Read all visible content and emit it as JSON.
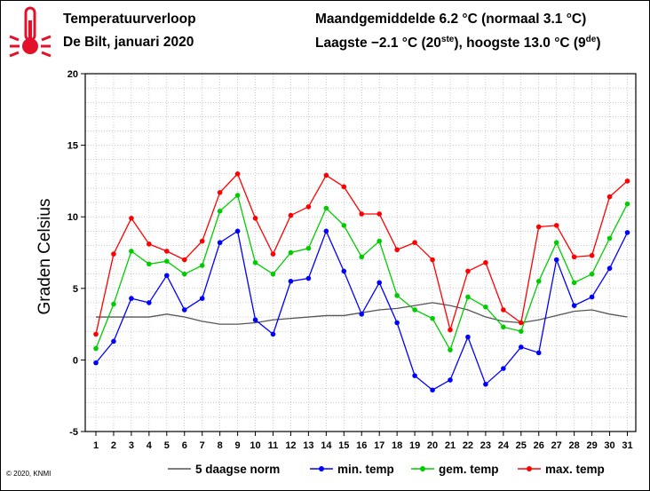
{
  "header": {
    "title": "Temperatuurverloop",
    "subtitle": "De Bilt, januari 2020",
    "monthly_line": "Maandgemiddelde 6.2 °C (normaal 3.1 °C)",
    "extremes_prefix": "Laagste −2.1 °C (20",
    "extremes_sup1": "ste",
    "extremes_mid": "), hoogste 13.0 °C (9",
    "extremes_sup2": "de",
    "extremes_suffix": ")"
  },
  "icon": "thermometer-icon",
  "copyright": "© 2020, KNMI",
  "colors": {
    "norm": "#555555",
    "min": "#0000ff",
    "mean": "#00cc00",
    "max": "#ff0000",
    "grid": "#999999"
  },
  "chart_data": {
    "type": "line",
    "ylabel": "Graden Celsius",
    "xlabel": "",
    "ylim": [
      -5,
      20
    ],
    "yticks": [
      -5,
      0,
      5,
      10,
      15,
      20
    ],
    "grid": true,
    "legend_position": "bottom",
    "x": [
      1,
      2,
      3,
      4,
      5,
      6,
      7,
      8,
      9,
      10,
      11,
      12,
      13,
      14,
      15,
      16,
      17,
      18,
      19,
      20,
      21,
      22,
      23,
      24,
      25,
      26,
      27,
      28,
      29,
      30,
      31
    ],
    "series": [
      {
        "name": "5 daagse norm",
        "key": "norm",
        "markers": false,
        "values": [
          3.0,
          3.0,
          3.0,
          3.0,
          3.2,
          3.0,
          2.7,
          2.5,
          2.5,
          2.6,
          2.8,
          2.9,
          3.0,
          3.1,
          3.1,
          3.3,
          3.5,
          3.6,
          3.8,
          4.0,
          3.8,
          3.5,
          3.0,
          2.7,
          2.6,
          2.8,
          3.1,
          3.4,
          3.5,
          3.2,
          3.0
        ]
      },
      {
        "name": "min. temp",
        "key": "min",
        "markers": true,
        "values": [
          -0.2,
          1.3,
          4.3,
          4.0,
          5.9,
          3.5,
          4.3,
          8.2,
          9.0,
          2.8,
          1.8,
          5.5,
          5.7,
          9.0,
          6.2,
          3.2,
          5.4,
          2.6,
          -1.1,
          -2.1,
          -1.4,
          1.6,
          -1.7,
          -0.6,
          0.9,
          0.5,
          7.0,
          3.8,
          4.4,
          6.4,
          8.9
        ]
      },
      {
        "name": "gem. temp",
        "key": "mean",
        "markers": true,
        "values": [
          0.8,
          3.9,
          7.6,
          6.7,
          6.9,
          6.0,
          6.6,
          10.4,
          11.5,
          6.8,
          6.0,
          7.5,
          7.8,
          10.6,
          9.4,
          7.2,
          8.3,
          4.5,
          3.5,
          2.9,
          0.7,
          4.4,
          3.7,
          2.3,
          2.0,
          5.5,
          8.2,
          5.4,
          6.0,
          8.5,
          10.9
        ]
      },
      {
        "name": "max. temp",
        "key": "max",
        "markers": true,
        "values": [
          1.8,
          7.4,
          9.9,
          8.1,
          7.6,
          7.0,
          8.3,
          11.7,
          13.0,
          9.9,
          7.4,
          10.1,
          10.7,
          12.9,
          12.1,
          10.2,
          10.2,
          7.7,
          8.2,
          7.0,
          2.1,
          6.2,
          6.8,
          3.5,
          2.6,
          9.3,
          9.4,
          7.2,
          7.3,
          11.4,
          12.5
        ]
      }
    ]
  }
}
